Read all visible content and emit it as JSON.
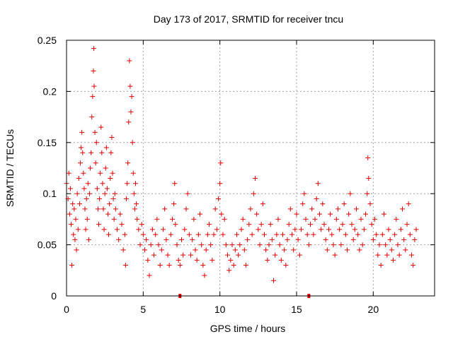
{
  "chart_data": {
    "type": "scatter",
    "title": "Day 173 of 2017, SRMTID for receiver tncu",
    "xlabel": "GPS time / hours",
    "ylabel": "SRMTID / TECUs",
    "xlim": [
      0,
      24
    ],
    "ylim": [
      0,
      0.25
    ],
    "x_ticks": [
      0,
      5,
      10,
      15,
      20
    ],
    "y_ticks": [
      0,
      0.05,
      0.1,
      0.15,
      0.2,
      0.25
    ],
    "grid": true,
    "marker": "+",
    "color": "#e00000",
    "axis_markers_x": [
      7.4,
      15.8
    ],
    "series": [
      {
        "name": "SRMTID",
        "points": [
          [
            0.0,
            0.11
          ],
          [
            0.1,
            0.095
          ],
          [
            0.15,
            0.12
          ],
          [
            0.2,
            0.08
          ],
          [
            0.25,
            0.105
          ],
          [
            0.3,
            0.07
          ],
          [
            0.35,
            0.03
          ],
          [
            0.4,
            0.09
          ],
          [
            0.45,
            0.06
          ],
          [
            0.5,
            0.085
          ],
          [
            0.55,
            0.055
          ],
          [
            0.6,
            0.075
          ],
          [
            0.65,
            0.045
          ],
          [
            0.7,
            0.1
          ],
          [
            0.75,
            0.065
          ],
          [
            0.8,
            0.115
          ],
          [
            0.85,
            0.09
          ],
          [
            0.9,
            0.13
          ],
          [
            0.95,
            0.145
          ],
          [
            1.0,
            0.16
          ],
          [
            1.05,
            0.14
          ],
          [
            1.1,
            0.12
          ],
          [
            1.15,
            0.105
          ],
          [
            1.2,
            0.085
          ],
          [
            1.25,
            0.065
          ],
          [
            1.3,
            0.095
          ],
          [
            1.35,
            0.075
          ],
          [
            1.4,
            0.11
          ],
          [
            1.45,
            0.055
          ],
          [
            1.5,
            0.1
          ],
          [
            1.55,
            0.125
          ],
          [
            1.6,
            0.14
          ],
          [
            1.65,
            0.175
          ],
          [
            1.7,
            0.195
          ],
          [
            1.75,
            0.22
          ],
          [
            1.78,
            0.242
          ],
          [
            1.8,
            0.205
          ],
          [
            1.85,
            0.16
          ],
          [
            1.9,
            0.13
          ],
          [
            1.95,
            0.15
          ],
          [
            2.0,
            0.105
          ],
          [
            2.05,
            0.085
          ],
          [
            2.1,
            0.07
          ],
          [
            2.15,
            0.095
          ],
          [
            2.2,
            0.12
          ],
          [
            2.25,
            0.165
          ],
          [
            2.3,
            0.14
          ],
          [
            2.35,
            0.11
          ],
          [
            2.4,
            0.085
          ],
          [
            2.45,
            0.065
          ],
          [
            2.5,
            0.1
          ],
          [
            2.55,
            0.125
          ],
          [
            2.6,
            0.145
          ],
          [
            2.65,
            0.105
          ],
          [
            2.7,
            0.08
          ],
          [
            2.75,
            0.06
          ],
          [
            2.8,
            0.09
          ],
          [
            2.85,
            0.115
          ],
          [
            2.9,
            0.14
          ],
          [
            2.95,
            0.155
          ],
          [
            3.0,
            0.12
          ],
          [
            3.05,
            0.095
          ],
          [
            3.1,
            0.075
          ],
          [
            3.15,
            0.1
          ],
          [
            3.2,
            0.085
          ],
          [
            3.3,
            0.065
          ],
          [
            3.4,
            0.055
          ],
          [
            3.5,
            0.08
          ],
          [
            3.6,
            0.07
          ],
          [
            3.7,
            0.045
          ],
          [
            3.8,
            0.06
          ],
          [
            3.85,
            0.03
          ],
          [
            3.9,
            0.095
          ],
          [
            3.95,
            0.11
          ],
          [
            4.0,
            0.13
          ],
          [
            4.05,
            0.17
          ],
          [
            4.1,
            0.23
          ],
          [
            4.15,
            0.205
          ],
          [
            4.2,
            0.18
          ],
          [
            4.25,
            0.195
          ],
          [
            4.3,
            0.15
          ],
          [
            4.35,
            0.12
          ],
          [
            4.4,
            0.1
          ],
          [
            4.45,
            0.085
          ],
          [
            4.5,
            0.11
          ],
          [
            4.55,
            0.09
          ],
          [
            4.6,
            0.075
          ],
          [
            4.7,
            0.065
          ],
          [
            4.8,
            0.05
          ],
          [
            4.9,
            0.07
          ],
          [
            5.0,
            0.06
          ],
          [
            5.1,
            0.045
          ],
          [
            5.2,
            0.055
          ],
          [
            5.3,
            0.035
          ],
          [
            5.4,
            0.02
          ],
          [
            5.5,
            0.05
          ],
          [
            5.6,
            0.065
          ],
          [
            5.7,
            0.04
          ],
          [
            5.8,
            0.06
          ],
          [
            5.9,
            0.075
          ],
          [
            6.0,
            0.05
          ],
          [
            6.1,
            0.03
          ],
          [
            6.2,
            0.045
          ],
          [
            6.3,
            0.065
          ],
          [
            6.4,
            0.085
          ],
          [
            6.5,
            0.055
          ],
          [
            6.6,
            0.04
          ],
          [
            6.7,
            0.03
          ],
          [
            6.8,
            0.06
          ],
          [
            6.9,
            0.075
          ],
          [
            7.0,
            0.09
          ],
          [
            7.05,
            0.11
          ],
          [
            7.1,
            0.07
          ],
          [
            7.2,
            0.05
          ],
          [
            7.3,
            0.035
          ],
          [
            7.4,
            0.03
          ],
          [
            7.5,
            0.055
          ],
          [
            7.6,
            0.04
          ],
          [
            7.7,
            0.065
          ],
          [
            7.8,
            0.085
          ],
          [
            7.9,
            0.1
          ],
          [
            8.0,
            0.06
          ],
          [
            8.1,
            0.04
          ],
          [
            8.2,
            0.055
          ],
          [
            8.3,
            0.075
          ],
          [
            8.4,
            0.045
          ],
          [
            8.5,
            0.035
          ],
          [
            8.6,
            0.06
          ],
          [
            8.7,
            0.08
          ],
          [
            8.8,
            0.05
          ],
          [
            8.9,
            0.03
          ],
          [
            9.0,
            0.02
          ],
          [
            9.1,
            0.045
          ],
          [
            9.2,
            0.06
          ],
          [
            9.3,
            0.07
          ],
          [
            9.4,
            0.05
          ],
          [
            9.5,
            0.035
          ],
          [
            9.6,
            0.06
          ],
          [
            9.7,
            0.085
          ],
          [
            9.8,
            0.065
          ],
          [
            9.9,
            0.095
          ],
          [
            10.0,
            0.11
          ],
          [
            10.05,
            0.13
          ],
          [
            10.1,
            0.08
          ],
          [
            10.2,
            0.06
          ],
          [
            10.3,
            0.075
          ],
          [
            10.4,
            0.05
          ],
          [
            10.5,
            0.04
          ],
          [
            10.6,
            0.025
          ],
          [
            10.7,
            0.035
          ],
          [
            10.8,
            0.05
          ],
          [
            10.9,
            0.03
          ],
          [
            11.0,
            0.045
          ],
          [
            11.1,
            0.06
          ],
          [
            11.2,
            0.04
          ],
          [
            11.3,
            0.05
          ],
          [
            11.4,
            0.065
          ],
          [
            11.5,
            0.075
          ],
          [
            11.6,
            0.045
          ],
          [
            11.7,
            0.03
          ],
          [
            11.8,
            0.055
          ],
          [
            11.9,
            0.07
          ],
          [
            12.0,
            0.085
          ],
          [
            12.1,
            0.06
          ],
          [
            12.2,
            0.1
          ],
          [
            12.3,
            0.115
          ],
          [
            12.4,
            0.08
          ],
          [
            12.5,
            0.065
          ],
          [
            12.6,
            0.05
          ],
          [
            12.7,
            0.07
          ],
          [
            12.8,
            0.09
          ],
          [
            12.9,
            0.06
          ],
          [
            13.0,
            0.045
          ],
          [
            13.1,
            0.035
          ],
          [
            13.2,
            0.05
          ],
          [
            13.3,
            0.07
          ],
          [
            13.4,
            0.055
          ],
          [
            13.5,
            0.015
          ],
          [
            13.6,
            0.04
          ],
          [
            13.7,
            0.06
          ],
          [
            13.8,
            0.075
          ],
          [
            13.9,
            0.05
          ],
          [
            14.0,
            0.035
          ],
          [
            14.1,
            0.06
          ],
          [
            14.2,
            0.045
          ],
          [
            14.3,
            0.03
          ],
          [
            14.4,
            0.055
          ],
          [
            14.5,
            0.07
          ],
          [
            14.6,
            0.085
          ],
          [
            14.7,
            0.06
          ],
          [
            14.8,
            0.045
          ],
          [
            14.9,
            0.065
          ],
          [
            15.0,
            0.08
          ],
          [
            15.1,
            0.055
          ],
          [
            15.2,
            0.04
          ],
          [
            15.3,
            0.065
          ],
          [
            15.4,
            0.09
          ],
          [
            15.5,
            0.1
          ],
          [
            15.6,
            0.075
          ],
          [
            15.7,
            0.06
          ],
          [
            15.8,
            0.05
          ],
          [
            15.9,
            0.07
          ],
          [
            16.0,
            0.085
          ],
          [
            16.1,
            0.06
          ],
          [
            16.2,
            0.075
          ],
          [
            16.3,
            0.095
          ],
          [
            16.4,
            0.11
          ],
          [
            16.5,
            0.08
          ],
          [
            16.6,
            0.065
          ],
          [
            16.7,
            0.09
          ],
          [
            16.8,
            0.07
          ],
          [
            16.9,
            0.055
          ],
          [
            17.0,
            0.045
          ],
          [
            17.1,
            0.065
          ],
          [
            17.2,
            0.08
          ],
          [
            17.3,
            0.06
          ],
          [
            17.4,
            0.05
          ],
          [
            17.5,
            0.04
          ],
          [
            17.6,
            0.075
          ],
          [
            17.7,
            0.085
          ],
          [
            17.8,
            0.065
          ],
          [
            17.9,
            0.05
          ],
          [
            18.0,
            0.07
          ],
          [
            18.1,
            0.09
          ],
          [
            18.2,
            0.06
          ],
          [
            18.3,
            0.045
          ],
          [
            18.4,
            0.08
          ],
          [
            18.5,
            0.1
          ],
          [
            18.6,
            0.07
          ],
          [
            18.7,
            0.055
          ],
          [
            18.8,
            0.065
          ],
          [
            18.9,
            0.085
          ],
          [
            19.0,
            0.06
          ],
          [
            19.1,
            0.045
          ],
          [
            19.2,
            0.075
          ],
          [
            19.3,
            0.05
          ],
          [
            19.4,
            0.065
          ],
          [
            19.5,
            0.08
          ],
          [
            19.6,
            0.1
          ],
          [
            19.65,
            0.135
          ],
          [
            19.7,
            0.115
          ],
          [
            19.8,
            0.09
          ],
          [
            19.9,
            0.07
          ],
          [
            20.0,
            0.055
          ],
          [
            20.1,
            0.075
          ],
          [
            20.2,
            0.06
          ],
          [
            20.3,
            0.04
          ],
          [
            20.4,
            0.05
          ],
          [
            20.5,
            0.03
          ],
          [
            20.6,
            0.06
          ],
          [
            20.7,
            0.08
          ],
          [
            20.8,
            0.05
          ],
          [
            20.9,
            0.04
          ],
          [
            21.0,
            0.065
          ],
          [
            21.1,
            0.055
          ],
          [
            21.2,
            0.045
          ],
          [
            21.3,
            0.035
          ],
          [
            21.4,
            0.06
          ],
          [
            21.5,
            0.075
          ],
          [
            21.6,
            0.05
          ],
          [
            21.7,
            0.04
          ],
          [
            21.8,
            0.065
          ],
          [
            21.9,
            0.085
          ],
          [
            22.0,
            0.055
          ],
          [
            22.1,
            0.045
          ],
          [
            22.2,
            0.07
          ],
          [
            22.3,
            0.09
          ],
          [
            22.4,
            0.06
          ],
          [
            22.5,
            0.04
          ],
          [
            22.6,
            0.03
          ],
          [
            22.7,
            0.055
          ],
          [
            22.8,
            0.065
          ]
        ]
      }
    ]
  }
}
